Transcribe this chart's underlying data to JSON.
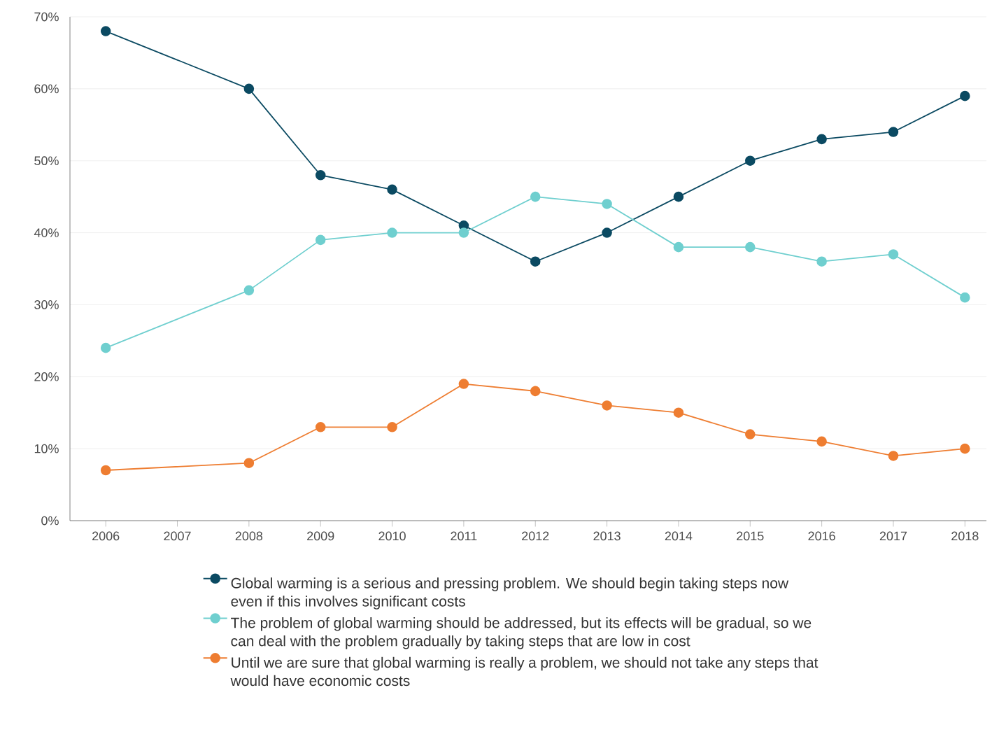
{
  "chart_data": {
    "type": "line",
    "x": [
      2006,
      2008,
      2009,
      2010,
      2011,
      2012,
      2013,
      2014,
      2015,
      2016,
      2017,
      2018
    ],
    "series": [
      {
        "name": "Global warming is a serious and pressing problem. We should begin taking steps now even if this involves significant costs",
        "color": "#0b4a62",
        "values": [
          68,
          60,
          48,
          46,
          41,
          36,
          40,
          45,
          50,
          53,
          54,
          59
        ]
      },
      {
        "name": "The problem of global warming should be addressed, but its effects will be gradual, so we can deal with the problem gradually by taking steps that are low in cost",
        "color": "#6fcfcf",
        "values": [
          24,
          32,
          39,
          40,
          40,
          45,
          44,
          38,
          38,
          36,
          37,
          31
        ]
      },
      {
        "name": "Until we are sure that global warming is really a problem, we should not take any steps that would have economic costs",
        "color": "#ee7d31",
        "values": [
          7,
          8,
          13,
          13,
          19,
          18,
          16,
          15,
          12,
          11,
          9,
          10
        ]
      }
    ],
    "xlim": [
      2005.5,
      2018.3
    ],
    "xticks": [
      2006,
      2007,
      2008,
      2009,
      2010,
      2011,
      2012,
      2013,
      2014,
      2015,
      2016,
      2017,
      2018
    ],
    "ylim": [
      0,
      70
    ],
    "yticks": [
      {
        "value": 0,
        "label": "0%"
      },
      {
        "value": 10,
        "label": "10%"
      },
      {
        "value": 20,
        "label": "20%"
      },
      {
        "value": 30,
        "label": "30%"
      },
      {
        "value": 40,
        "label": "40%"
      },
      {
        "value": 50,
        "label": "50%"
      },
      {
        "value": 60,
        "label": "60%"
      },
      {
        "value": 70,
        "label": "70%"
      }
    ],
    "grid": "y",
    "legend": "bottom",
    "marker": "circle",
    "line_style": "solid"
  }
}
